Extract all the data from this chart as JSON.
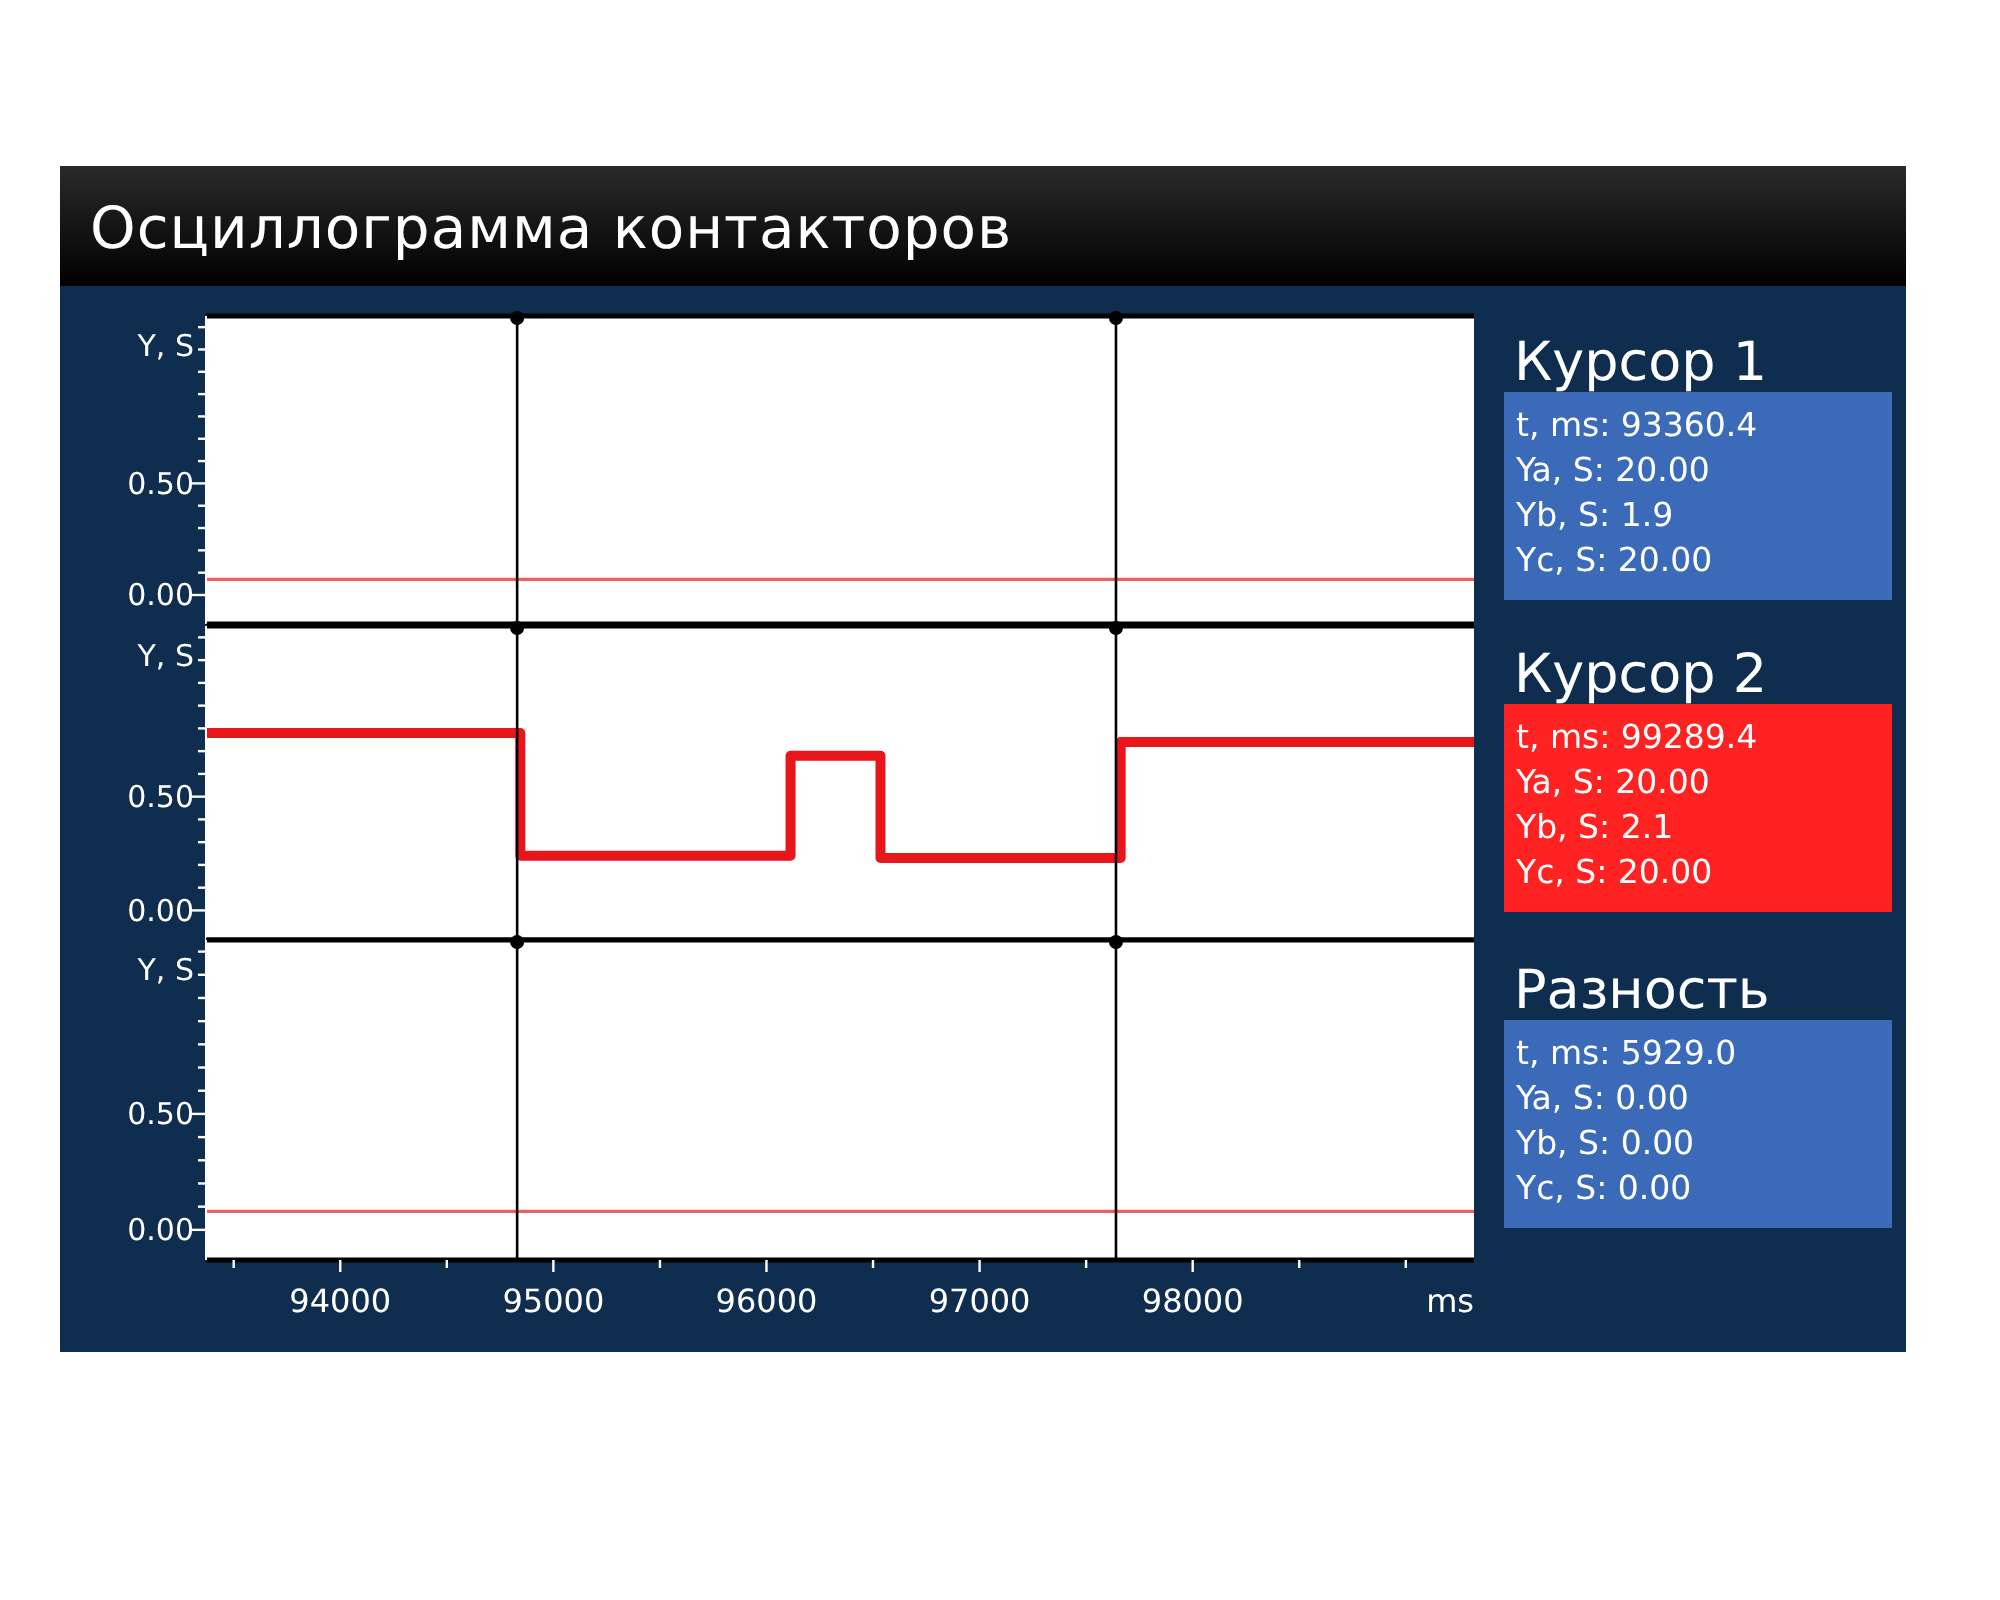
{
  "chart_data": [
    {
      "type": "line",
      "title": "Осциллограмма контакторов",
      "ylabel": "Y, S",
      "xlim": [
        93370,
        99320
      ],
      "ylim": [
        -0.13,
        1.25
      ],
      "yticks": [
        {
          "value": 0,
          "label": "0.00"
        },
        {
          "value": 0.5,
          "label": "0.50"
        },
        {
          "value": 0.1,
          "label": null
        },
        {
          "value": 0.2,
          "label": null
        },
        {
          "value": 0.3,
          "label": null
        },
        {
          "value": 0.4,
          "label": null
        },
        {
          "value": 0.6,
          "label": null
        },
        {
          "value": 0.7,
          "label": null
        },
        {
          "value": 0.8,
          "label": null
        },
        {
          "value": 0.9,
          "label": null
        },
        {
          "value": 1.0,
          "label": null
        },
        {
          "value": 1.1,
          "label": null
        },
        {
          "value": 1.2,
          "label": null
        }
      ],
      "tick_labels": "y",
      "grid": false,
      "series": [
        {
          "color": "#f06060",
          "x": [
            93370,
            99320
          ],
          "values": [
            0.07,
            0.07
          ]
        }
      ],
      "ref_lines": [
        {
          "axis": "x",
          "value": 94830,
          "color": "#000000"
        },
        {
          "axis": "x",
          "value": 97640,
          "color": "#000000"
        }
      ]
    },
    {
      "type": "step",
      "ylabel": "Y, S",
      "xlim": [
        93370,
        99320
      ],
      "ylim": [
        -0.13,
        1.25
      ],
      "yticks": [
        {
          "value": 0,
          "label": "0.00"
        },
        {
          "value": 0.5,
          "label": "0.50"
        },
        {
          "value": 0.1,
          "label": null
        },
        {
          "value": 0.2,
          "label": null
        },
        {
          "value": 0.3,
          "label": null
        },
        {
          "value": 0.4,
          "label": null
        },
        {
          "value": 0.6,
          "label": null
        },
        {
          "value": 0.7,
          "label": null
        },
        {
          "value": 0.8,
          "label": null
        },
        {
          "value": 0.9,
          "label": null
        },
        {
          "value": 1.0,
          "label": null
        },
        {
          "value": 1.1,
          "label": null
        },
        {
          "value": 1.2,
          "label": null
        }
      ],
      "tick_labels": "y",
      "grid": false,
      "series": [
        {
          "color": "#e8151b",
          "x": [
            93370,
            94845,
            96113,
            96535,
            97662,
            99320
          ],
          "values": [
            0.78,
            0.24,
            0.68,
            0.23,
            0.74,
            0.74
          ]
        }
      ],
      "ref_lines": [
        {
          "axis": "x",
          "value": 94830,
          "color": "#000000"
        },
        {
          "axis": "x",
          "value": 97640,
          "color": "#000000"
        }
      ]
    },
    {
      "type": "line",
      "ylabel": "Y, S",
      "xlabel": "ms",
      "xlim": [
        93370,
        99320
      ],
      "xticks": [
        94000,
        95000,
        96000,
        97000,
        98000,
        {
          "value": 93500,
          "label": null
        },
        {
          "value": 94500,
          "label": null
        },
        {
          "value": 95500,
          "label": null
        },
        {
          "value": 96500,
          "label": null
        },
        {
          "value": 97500,
          "label": null
        },
        {
          "value": 98500,
          "label": null
        },
        {
          "value": 99000,
          "label": null
        }
      ],
      "ylim": [
        -0.13,
        1.25
      ],
      "yticks": [
        {
          "value": 0,
          "label": "0.00"
        },
        {
          "value": 0.5,
          "label": "0.50"
        },
        {
          "value": 0.1,
          "label": null
        },
        {
          "value": 0.2,
          "label": null
        },
        {
          "value": 0.3,
          "label": null
        },
        {
          "value": 0.4,
          "label": null
        },
        {
          "value": 0.6,
          "label": null
        },
        {
          "value": 0.7,
          "label": null
        },
        {
          "value": 0.8,
          "label": null
        },
        {
          "value": 0.9,
          "label": null
        },
        {
          "value": 1.0,
          "label": null
        },
        {
          "value": 1.1,
          "label": null
        },
        {
          "value": 1.2,
          "label": null
        }
      ],
      "grid": false,
      "series": [
        {
          "color": "#f06060",
          "x": [
            93370,
            99320
          ],
          "values": [
            0.08,
            0.08
          ]
        }
      ],
      "ref_lines": [
        {
          "axis": "x",
          "value": 94830,
          "color": "#000000"
        },
        {
          "axis": "x",
          "value": 97640,
          "color": "#000000"
        }
      ]
    },
    {
      "type": "other",
      "colors": [
        "#3a6ab8",
        "#ff2222",
        "#3a6ab8"
      ],
      "annotations": [
        "Курсор 1",
        "t, ms: 93360.4",
        "Ya, S: 20.00",
        "Yb, S: 1.9",
        "Yc, S: 20.00",
        "Курсор 2",
        "t, ms: 99289.4",
        "Ya, S: 20.00",
        "Yb, S: 2.1",
        "Yc, S: 20.00",
        "Разность",
        "t, ms: 5929.0",
        "Ya, S: 0.00",
        "Yb, S: 0.00",
        "Yc, S: 0.00"
      ]
    }
  ]
}
